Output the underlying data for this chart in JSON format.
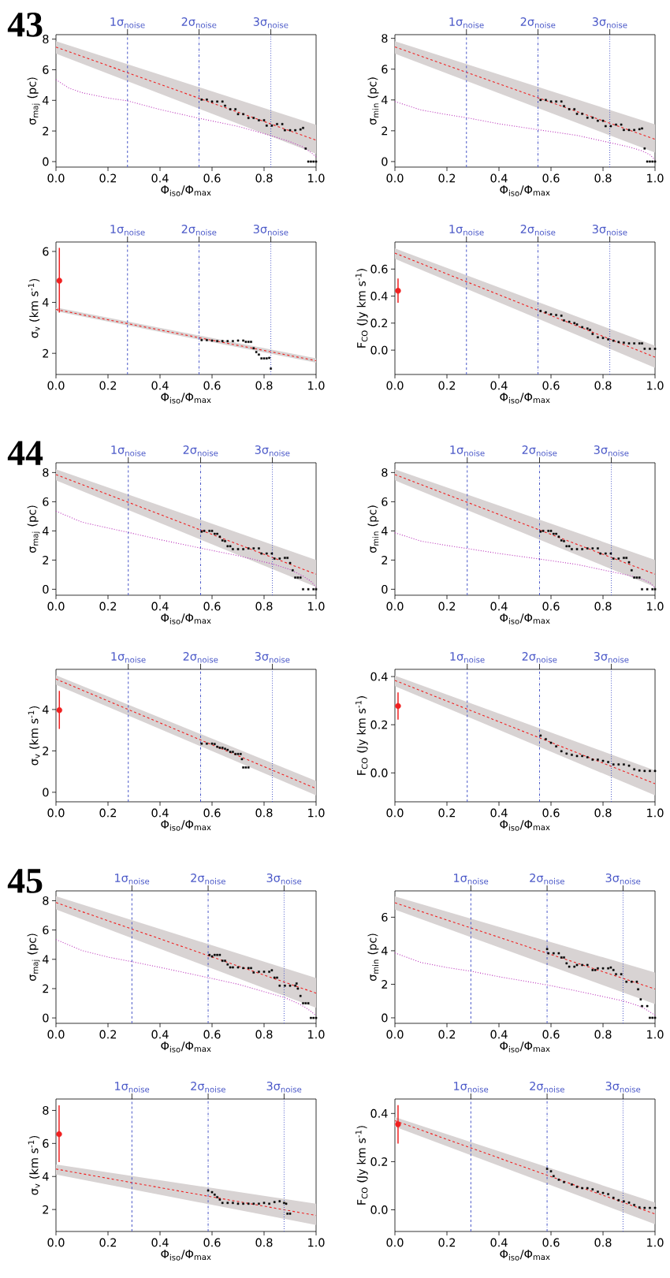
{
  "chart_data": [
    {
      "type": "scatter",
      "title": "43",
      "xlabel": "Φ$_{iso}$/Φ$_{max}$",
      "ylabel": "σ$_{maj}$ (pc)",
      "xlim": [
        0,
        1
      ],
      "ylim": [
        -0.36,
        8.29
      ],
      "xticks": [
        {
          "value": 0,
          "label": "0.0"
        },
        {
          "value": 0.2,
          "label": "0.2"
        },
        {
          "value": 0.4,
          "label": "0.4"
        },
        {
          "value": 0.6,
          "label": "0.6"
        },
        {
          "value": 0.8,
          "label": "0.8"
        },
        {
          "value": 1,
          "label": "1.0"
        }
      ],
      "yticks": [
        0,
        2,
        4,
        6,
        8
      ],
      "ref_lines": [
        {
          "axis": "x",
          "value": 0.275,
          "label": "1σ$_{noise}$",
          "color": "#4a58c8",
          "line_style": "dashed"
        },
        {
          "axis": "x",
          "value": 0.55,
          "label": "2σ$_{noise}$",
          "color": "#4a58c8",
          "line_style": "dashdot"
        },
        {
          "axis": "x",
          "value": 0.826,
          "label": "3σ$_{noise}$",
          "color": "#4a58c8",
          "line_style": "dotted"
        }
      ],
      "series": [
        {
          "type": "line",
          "color": "#f02020",
          "line_style": "dashed",
          "x": [
            0,
            1
          ],
          "values": [
            7.48,
            1.4
          ],
          "lower": [
            7.05,
            0.51
          ],
          "upper": [
            7.86,
            2.4
          ]
        },
        {
          "type": "line",
          "color": "#bf3fbf",
          "line_style": "dotted",
          "x": [
            0,
            0.05,
            0.1,
            0.2,
            0.275,
            0.4,
            0.55,
            0.7,
            0.826,
            0.9,
            0.95,
            0.98,
            1.0
          ],
          "values": [
            5.35,
            4.8,
            4.5,
            4.15,
            3.97,
            3.4,
            2.83,
            2.3,
            1.7,
            1.3,
            0.95,
            0.6,
            0.3
          ]
        },
        {
          "type": "scatter",
          "color": "#000000",
          "marker": "square",
          "x": [
            0.56,
            0.58,
            0.6,
            0.62,
            0.64,
            0.65,
            0.67,
            0.69,
            0.7,
            0.72,
            0.74,
            0.76,
            0.78,
            0.8,
            0.81,
            0.83,
            0.85,
            0.87,
            0.88,
            0.9,
            0.92,
            0.94,
            0.95,
            0.96,
            0.97,
            0.98,
            0.99,
            1.0
          ],
          "values": [
            4.05,
            4.05,
            3.92,
            3.92,
            3.92,
            3.65,
            3.42,
            3.42,
            3.1,
            3.1,
            2.85,
            2.85,
            2.7,
            2.7,
            2.35,
            2.35,
            2.45,
            2.45,
            2.05,
            2.05,
            2.05,
            2.1,
            2.2,
            0.85,
            0,
            0,
            0,
            0
          ]
        }
      ]
    },
    {
      "type": "scatter",
      "xlabel": "Φ$_{iso}$/Φ$_{max}$",
      "ylabel": "σ$_{min}$ (pc)",
      "xlim": [
        0,
        1
      ],
      "ylim": [
        -0.36,
        8.24
      ],
      "xticks": [
        {
          "value": 0,
          "label": "0.0"
        },
        {
          "value": 0.2,
          "label": "0.2"
        },
        {
          "value": 0.4,
          "label": "0.4"
        },
        {
          "value": 0.6,
          "label": "0.6"
        },
        {
          "value": 0.8,
          "label": "0.8"
        },
        {
          "value": 1,
          "label": "1.0"
        }
      ],
      "yticks": [
        0,
        2,
        4,
        6,
        8
      ],
      "ref_lines": [
        {
          "axis": "x",
          "value": 0.275,
          "label": "1σ$_{noise}$",
          "color": "#4a58c8",
          "line_style": "dashed"
        },
        {
          "axis": "x",
          "value": 0.55,
          "label": "2σ$_{noise}$",
          "color": "#4a58c8",
          "line_style": "dashdot"
        },
        {
          "axis": "x",
          "value": 0.826,
          "label": "3σ$_{noise}$",
          "color": "#4a58c8",
          "line_style": "dotted"
        }
      ],
      "series": [
        {
          "type": "line",
          "color": "#f02020",
          "line_style": "dashed",
          "x": [
            0,
            1
          ],
          "values": [
            7.44,
            1.45
          ],
          "lower": [
            7.01,
            0.58
          ],
          "upper": [
            7.81,
            2.42
          ]
        },
        {
          "type": "line",
          "color": "#bf3fbf",
          "line_style": "dotted",
          "x": [
            0,
            0.1,
            0.2,
            0.275,
            0.4,
            0.55,
            0.7,
            0.826,
            0.9,
            0.95,
            0.98,
            1.0
          ],
          "values": [
            3.9,
            3.35,
            3.05,
            2.85,
            2.45,
            2.07,
            1.7,
            1.23,
            0.95,
            0.7,
            0.45,
            0.1
          ]
        },
        {
          "type": "scatter",
          "color": "#000000",
          "marker": "square",
          "x": [
            0.56,
            0.58,
            0.6,
            0.62,
            0.64,
            0.65,
            0.67,
            0.69,
            0.7,
            0.72,
            0.74,
            0.76,
            0.78,
            0.8,
            0.81,
            0.83,
            0.85,
            0.87,
            0.88,
            0.9,
            0.92,
            0.94,
            0.95,
            0.96,
            0.97,
            0.98,
            0.99,
            1.0
          ],
          "values": [
            4.0,
            4.0,
            3.9,
            3.9,
            3.9,
            3.6,
            3.4,
            3.4,
            3.1,
            3.1,
            2.85,
            2.85,
            2.65,
            2.65,
            2.3,
            2.3,
            2.4,
            2.4,
            2.05,
            2.05,
            2.05,
            2.1,
            2.15,
            0.85,
            0,
            0,
            0,
            0
          ]
        }
      ]
    },
    {
      "type": "scatter",
      "xlabel": "Φ$_{iso}$/Φ$_{max}$",
      "ylabel": "σ$_{v}$ (km s$^{-1}$)",
      "xlim": [
        0,
        1
      ],
      "ylim": [
        1.17,
        6.37
      ],
      "xticks": [
        {
          "value": 0,
          "label": "0.0"
        },
        {
          "value": 0.2,
          "label": "0.2"
        },
        {
          "value": 0.4,
          "label": "0.4"
        },
        {
          "value": 0.6,
          "label": "0.6"
        },
        {
          "value": 0.8,
          "label": "0.8"
        },
        {
          "value": 1,
          "label": "1.0"
        }
      ],
      "yticks": [
        2,
        4,
        6
      ],
      "ref_lines": [
        {
          "axis": "x",
          "value": 0.275,
          "label": "1σ$_{noise}$",
          "color": "#4a58c8",
          "line_style": "dashed"
        },
        {
          "axis": "x",
          "value": 0.55,
          "label": "2σ$_{noise}$",
          "color": "#4a58c8",
          "line_style": "dashdot"
        },
        {
          "axis": "x",
          "value": 0.826,
          "label": "3σ$_{noise}$",
          "color": "#4a58c8",
          "line_style": "dotted"
        }
      ],
      "series": [
        {
          "type": "line",
          "color": "#f02020",
          "line_style": "dashed",
          "x": [
            0,
            1
          ],
          "values": [
            3.72,
            1.71
          ],
          "lower": [
            3.65,
            1.63
          ],
          "upper": [
            3.8,
            1.8
          ]
        },
        {
          "type": "scatter",
          "color": "#000000",
          "marker": "square",
          "x": [
            0.56,
            0.58,
            0.6,
            0.62,
            0.64,
            0.66,
            0.68,
            0.7,
            0.72,
            0.73,
            0.74,
            0.75,
            0.76,
            0.77,
            0.78,
            0.79,
            0.8,
            0.81,
            0.82,
            0.826
          ],
          "values": [
            2.52,
            2.52,
            2.5,
            2.48,
            2.48,
            2.48,
            2.48,
            2.5,
            2.5,
            2.45,
            2.45,
            2.45,
            2.2,
            2.05,
            1.95,
            1.8,
            1.8,
            1.8,
            1.82,
            1.4
          ]
        },
        {
          "type": "scatter",
          "color": "#f02020",
          "marker": "circle",
          "x": [
            0.013
          ],
          "values": [
            4.85
          ],
          "errors": [
            [
              3.6,
              6.14
            ]
          ]
        }
      ]
    },
    {
      "type": "scatter",
      "xlabel": "Φ$_{iso}$/Φ$_{max}$",
      "ylabel": "F$_{CO}$ (Jy km s$^{-1}$)",
      "xlim": [
        0,
        1
      ],
      "ylim": [
        -0.18,
        0.8
      ],
      "xticks": [
        {
          "value": 0,
          "label": "0.0"
        },
        {
          "value": 0.2,
          "label": "0.2"
        },
        {
          "value": 0.4,
          "label": "0.4"
        },
        {
          "value": 0.6,
          "label": "0.6"
        },
        {
          "value": 0.8,
          "label": "0.8"
        },
        {
          "value": 1,
          "label": "1.0"
        }
      ],
      "yticks": [
        {
          "value": 0,
          "label": "0.0"
        },
        {
          "value": 0.2,
          "label": "0.2"
        },
        {
          "value": 0.4,
          "label": "0.4"
        },
        {
          "value": 0.6,
          "label": "0.6"
        }
      ],
      "ref_lines": [
        {
          "axis": "x",
          "value": 0.275,
          "label": "1σ$_{noise}$",
          "color": "#4a58c8",
          "line_style": "dashed"
        },
        {
          "axis": "x",
          "value": 0.55,
          "label": "2σ$_{noise}$",
          "color": "#4a58c8",
          "line_style": "dashdot"
        },
        {
          "axis": "x",
          "value": 0.826,
          "label": "3σ$_{noise}$",
          "color": "#4a58c8",
          "line_style": "dotted"
        }
      ],
      "series": [
        {
          "type": "line",
          "color": "#f02020",
          "line_style": "dashed",
          "x": [
            0,
            1
          ],
          "values": [
            0.718,
            -0.052
          ],
          "lower": [
            0.676,
            -0.13
          ],
          "upper": [
            0.753,
            0.033
          ]
        },
        {
          "type": "scatter",
          "color": "#000000",
          "marker": "square",
          "x": [
            0.56,
            0.58,
            0.6,
            0.62,
            0.64,
            0.65,
            0.67,
            0.69,
            0.7,
            0.72,
            0.74,
            0.75,
            0.76,
            0.78,
            0.8,
            0.82,
            0.84,
            0.86,
            0.88,
            0.9,
            0.92,
            0.94,
            0.95,
            0.96,
            0.98,
            1.0
          ],
          "values": [
            0.29,
            0.28,
            0.265,
            0.26,
            0.255,
            0.22,
            0.21,
            0.2,
            0.19,
            0.17,
            0.16,
            0.15,
            0.12,
            0.095,
            0.09,
            0.08,
            0.07,
            0.06,
            0.055,
            0.05,
            0.05,
            0.05,
            0.05,
            0.01,
            0.01,
            0.01
          ]
        },
        {
          "type": "scatter",
          "color": "#f02020",
          "marker": "circle",
          "x": [
            0.012
          ],
          "values": [
            0.439
          ],
          "errors": [
            [
              0.35,
              0.53
            ]
          ]
        }
      ]
    },
    {
      "type": "scatter",
      "title": "44",
      "xlabel": "Φ$_{iso}$/Φ$_{max}$",
      "ylabel": "σ$_{maj}$ (pc)",
      "xlim": [
        0,
        1
      ],
      "ylim": [
        -0.41,
        8.67
      ],
      "xticks": [
        {
          "value": 0,
          "label": "0.0"
        },
        {
          "value": 0.2,
          "label": "0.2"
        },
        {
          "value": 0.4,
          "label": "0.4"
        },
        {
          "value": 0.6,
          "label": "0.6"
        },
        {
          "value": 0.8,
          "label": "0.8"
        },
        {
          "value": 1,
          "label": "1.0"
        }
      ],
      "yticks": [
        0,
        2,
        4,
        6,
        8
      ],
      "ref_lines": [
        {
          "axis": "x",
          "value": 0.278,
          "label": "1σ$_{noise}$",
          "color": "#4a58c8",
          "line_style": "dashed"
        },
        {
          "axis": "x",
          "value": 0.556,
          "label": "2σ$_{noise}$",
          "color": "#4a58c8",
          "line_style": "dashdot"
        },
        {
          "axis": "x",
          "value": 0.832,
          "label": "3σ$_{noise}$",
          "color": "#4a58c8",
          "line_style": "dotted"
        }
      ],
      "series": [
        {
          "type": "line",
          "color": "#f02020",
          "line_style": "dashed",
          "x": [
            0,
            1
          ],
          "values": [
            7.86,
            1.03
          ],
          "lower": [
            7.46,
            0.16
          ],
          "upper": [
            8.22,
            2.01
          ]
        },
        {
          "type": "line",
          "color": "#bf3fbf",
          "line_style": "dotted",
          "x": [
            0,
            0.1,
            0.2,
            0.278,
            0.4,
            0.556,
            0.7,
            0.832,
            0.9,
            0.95,
            0.98,
            1.0
          ],
          "values": [
            5.35,
            4.6,
            4.2,
            3.9,
            3.4,
            2.82,
            2.3,
            1.74,
            1.35,
            0.9,
            0.55,
            0.15
          ]
        },
        {
          "type": "scatter",
          "color": "#000000",
          "marker": "square",
          "x": [
            0.56,
            0.57,
            0.59,
            0.6,
            0.61,
            0.62,
            0.63,
            0.64,
            0.65,
            0.66,
            0.67,
            0.68,
            0.7,
            0.72,
            0.74,
            0.76,
            0.78,
            0.79,
            0.81,
            0.83,
            0.84,
            0.86,
            0.88,
            0.89,
            0.9,
            0.91,
            0.92,
            0.93,
            0.94,
            0.95,
            0.97,
            0.99,
            1.0
          ],
          "values": [
            3.95,
            4.0,
            4.0,
            4.0,
            3.8,
            3.8,
            3.6,
            3.35,
            3.3,
            2.95,
            2.95,
            2.75,
            2.75,
            2.75,
            2.8,
            2.8,
            2.8,
            2.45,
            2.45,
            2.45,
            2.1,
            2.1,
            2.15,
            2.15,
            1.8,
            1.3,
            0.8,
            0.8,
            0.8,
            0,
            0,
            0,
            0
          ]
        }
      ]
    },
    {
      "type": "scatter",
      "xlabel": "Φ$_{iso}$/Φ$_{max}$",
      "ylabel": "σ$_{min}$ (pc)",
      "xlim": [
        0,
        1
      ],
      "ylim": [
        -0.41,
        8.67
      ],
      "xticks": [
        {
          "value": 0,
          "label": "0.0"
        },
        {
          "value": 0.2,
          "label": "0.2"
        },
        {
          "value": 0.4,
          "label": "0.4"
        },
        {
          "value": 0.6,
          "label": "0.6"
        },
        {
          "value": 0.8,
          "label": "0.8"
        },
        {
          "value": 1,
          "label": "1.0"
        }
      ],
      "yticks": [
        0,
        2,
        4,
        6,
        8
      ],
      "ref_lines": [
        {
          "axis": "x",
          "value": 0.278,
          "label": "1σ$_{noise}$",
          "color": "#4a58c8",
          "line_style": "dashed"
        },
        {
          "axis": "x",
          "value": 0.556,
          "label": "2σ$_{noise}$",
          "color": "#4a58c8",
          "line_style": "dashdot"
        },
        {
          "axis": "x",
          "value": 0.832,
          "label": "3σ$_{noise}$",
          "color": "#4a58c8",
          "line_style": "dotted"
        }
      ],
      "series": [
        {
          "type": "line",
          "color": "#f02020",
          "line_style": "dashed",
          "x": [
            0,
            1
          ],
          "values": [
            7.86,
            1.03
          ],
          "lower": [
            7.46,
            0.16
          ],
          "upper": [
            8.22,
            2.01
          ]
        },
        {
          "type": "line",
          "color": "#bf3fbf",
          "line_style": "dotted",
          "x": [
            0,
            0.1,
            0.2,
            0.278,
            0.4,
            0.556,
            0.7,
            0.832,
            0.9,
            0.95,
            0.98,
            1.0
          ],
          "values": [
            3.87,
            3.3,
            3.0,
            2.79,
            2.45,
            2.07,
            1.7,
            1.2,
            0.95,
            0.7,
            0.45,
            0.1
          ]
        },
        {
          "type": "scatter",
          "color": "#000000",
          "marker": "square",
          "x": [
            0.56,
            0.57,
            0.59,
            0.6,
            0.61,
            0.62,
            0.63,
            0.64,
            0.65,
            0.66,
            0.67,
            0.68,
            0.7,
            0.72,
            0.74,
            0.76,
            0.78,
            0.79,
            0.81,
            0.83,
            0.84,
            0.86,
            0.88,
            0.89,
            0.9,
            0.91,
            0.92,
            0.93,
            0.94,
            0.95,
            0.97,
            0.99,
            1.0
          ],
          "values": [
            3.95,
            4.0,
            4.0,
            4.0,
            3.8,
            3.8,
            3.6,
            3.35,
            3.3,
            2.95,
            2.95,
            2.75,
            2.75,
            2.75,
            2.8,
            2.8,
            2.8,
            2.45,
            2.45,
            2.45,
            2.1,
            2.1,
            2.15,
            2.15,
            1.85,
            1.3,
            0.8,
            0.8,
            0.8,
            0,
            0,
            0,
            0
          ]
        }
      ]
    },
    {
      "type": "scatter",
      "xlabel": "Φ$_{iso}$/Φ$_{max}$",
      "ylabel": "σ$_{v}$ (km s$^{-1}$)",
      "xlim": [
        0,
        1
      ],
      "ylim": [
        -0.46,
        5.94
      ],
      "xticks": [
        {
          "value": 0,
          "label": "0.0"
        },
        {
          "value": 0.2,
          "label": "0.2"
        },
        {
          "value": 0.4,
          "label": "0.4"
        },
        {
          "value": 0.6,
          "label": "0.6"
        },
        {
          "value": 0.8,
          "label": "0.8"
        },
        {
          "value": 1,
          "label": "1.0"
        }
      ],
      "yticks": [
        0,
        2,
        4
      ],
      "ref_lines": [
        {
          "axis": "x",
          "value": 0.278,
          "label": "1σ$_{noise}$",
          "color": "#4a58c8",
          "line_style": "dashed"
        },
        {
          "axis": "x",
          "value": 0.556,
          "label": "2σ$_{noise}$",
          "color": "#4a58c8",
          "line_style": "dashdot"
        },
        {
          "axis": "x",
          "value": 0.832,
          "label": "3σ$_{noise}$",
          "color": "#4a58c8",
          "line_style": "dotted"
        }
      ],
      "series": [
        {
          "type": "line",
          "color": "#f02020",
          "line_style": "dashed",
          "x": [
            0,
            1
          ],
          "values": [
            5.47,
            0.18
          ],
          "lower": [
            5.2,
            -0.15
          ],
          "upper": [
            5.65,
            0.55
          ]
        },
        {
          "type": "scatter",
          "color": "#000000",
          "marker": "square",
          "x": [
            0.56,
            0.58,
            0.6,
            0.61,
            0.62,
            0.63,
            0.64,
            0.65,
            0.66,
            0.67,
            0.68,
            0.69,
            0.7,
            0.71,
            0.715,
            0.72,
            0.73,
            0.74
          ],
          "values": [
            2.35,
            2.35,
            2.35,
            2.33,
            2.2,
            2.15,
            2.15,
            2.1,
            2.05,
            1.95,
            1.95,
            1.85,
            1.85,
            1.85,
            1.6,
            1.2,
            1.2,
            1.2
          ]
        },
        {
          "type": "scatter",
          "color": "#f02020",
          "marker": "circle",
          "x": [
            0.013
          ],
          "values": [
            3.97
          ],
          "errors": [
            [
              3.06,
              4.9
            ]
          ]
        }
      ]
    },
    {
      "type": "scatter",
      "xlabel": "Φ$_{iso}$/Φ$_{max}$",
      "ylabel": "F$_{CO}$ (Jy km s$^{-1}$)",
      "xlim": [
        0,
        1
      ],
      "ylim": [
        -0.12,
        0.43
      ],
      "xticks": [
        {
          "value": 0,
          "label": "0.0"
        },
        {
          "value": 0.2,
          "label": "0.2"
        },
        {
          "value": 0.4,
          "label": "0.4"
        },
        {
          "value": 0.6,
          "label": "0.6"
        },
        {
          "value": 0.8,
          "label": "0.8"
        },
        {
          "value": 1,
          "label": "1.0"
        }
      ],
      "yticks": [
        {
          "value": 0,
          "label": "0.0"
        },
        {
          "value": 0.2,
          "label": "0.2"
        },
        {
          "value": 0.4,
          "label": "0.4"
        }
      ],
      "ref_lines": [
        {
          "axis": "x",
          "value": 0.278,
          "label": "1σ$_{noise}$",
          "color": "#4a58c8",
          "line_style": "dashed"
        },
        {
          "axis": "x",
          "value": 0.556,
          "label": "2σ$_{noise}$",
          "color": "#4a58c8",
          "line_style": "dashdot"
        },
        {
          "axis": "x",
          "value": 0.832,
          "label": "3σ$_{noise}$",
          "color": "#4a58c8",
          "line_style": "dotted"
        }
      ],
      "series": [
        {
          "type": "line",
          "color": "#f02020",
          "line_style": "dashed",
          "x": [
            0,
            1
          ],
          "values": [
            0.384,
            -0.045
          ],
          "lower": [
            0.36,
            -0.093
          ],
          "upper": [
            0.404,
            0.01
          ]
        },
        {
          "type": "scatter",
          "color": "#000000",
          "marker": "square",
          "x": [
            0.56,
            0.58,
            0.6,
            0.62,
            0.64,
            0.66,
            0.68,
            0.7,
            0.72,
            0.74,
            0.76,
            0.78,
            0.8,
            0.82,
            0.84,
            0.86,
            0.88,
            0.9,
            0.92,
            0.94,
            0.96,
            0.98,
            1.0
          ],
          "values": [
            0.155,
            0.14,
            0.125,
            0.11,
            0.09,
            0.08,
            0.075,
            0.07,
            0.07,
            0.065,
            0.055,
            0.055,
            0.05,
            0.045,
            0.035,
            0.035,
            0.035,
            0.03,
            0.015,
            0.01,
            0.008,
            0.008,
            0.008
          ]
        },
        {
          "type": "scatter",
          "color": "#f02020",
          "marker": "circle",
          "x": [
            0.012
          ],
          "values": [
            0.278
          ],
          "errors": [
            [
              0.221,
              0.334
            ]
          ]
        }
      ]
    },
    {
      "type": "scatter",
      "title": "45",
      "xlabel": "Φ$_{iso}$/Φ$_{max}$",
      "ylabel": "σ$_{maj}$ (pc)",
      "xlim": [
        0,
        1
      ],
      "ylim": [
        -0.37,
        8.67
      ],
      "xticks": [
        {
          "value": 0,
          "label": "0.0"
        },
        {
          "value": 0.2,
          "label": "0.2"
        },
        {
          "value": 0.4,
          "label": "0.4"
        },
        {
          "value": 0.6,
          "label": "0.6"
        },
        {
          "value": 0.8,
          "label": "0.8"
        },
        {
          "value": 1,
          "label": "1.0"
        }
      ],
      "yticks": [
        0,
        2,
        4,
        6,
        8
      ],
      "ref_lines": [
        {
          "axis": "x",
          "value": 0.292,
          "label": "1σ$_{noise}$",
          "color": "#4a58c8",
          "line_style": "dashed"
        },
        {
          "axis": "x",
          "value": 0.585,
          "label": "2σ$_{noise}$",
          "color": "#4a58c8",
          "line_style": "dashdot"
        },
        {
          "axis": "x",
          "value": 0.877,
          "label": "3σ$_{noise}$",
          "color": "#4a58c8",
          "line_style": "dotted"
        }
      ],
      "series": [
        {
          "type": "line",
          "color": "#f02020",
          "line_style": "dashed",
          "x": [
            0,
            1
          ],
          "values": [
            7.87,
            1.69
          ],
          "lower": [
            7.4,
            0.69
          ],
          "upper": [
            8.3,
            2.72
          ]
        },
        {
          "type": "line",
          "color": "#bf3fbf",
          "line_style": "dotted",
          "x": [
            0,
            0.1,
            0.2,
            0.292,
            0.4,
            0.585,
            0.7,
            0.877,
            0.93,
            0.96,
            0.98,
            1.0
          ],
          "values": [
            5.35,
            4.6,
            4.15,
            3.84,
            3.45,
            2.75,
            2.3,
            1.4,
            1.0,
            0.7,
            0.45,
            0.15
          ]
        },
        {
          "type": "scatter",
          "color": "#000000",
          "marker": "square",
          "x": [
            0.59,
            0.6,
            0.61,
            0.62,
            0.63,
            0.64,
            0.65,
            0.66,
            0.67,
            0.68,
            0.7,
            0.72,
            0.74,
            0.75,
            0.76,
            0.78,
            0.8,
            0.82,
            0.83,
            0.84,
            0.85,
            0.86,
            0.88,
            0.9,
            0.92,
            0.925,
            0.93,
            0.94,
            0.95,
            0.96,
            0.97,
            0.98,
            0.99,
            1.0
          ],
          "values": [
            4.3,
            4.2,
            4.3,
            4.3,
            4.3,
            3.9,
            3.9,
            3.65,
            3.45,
            3.45,
            3.45,
            3.4,
            3.4,
            3.4,
            3.1,
            3.15,
            3.15,
            3.15,
            3.25,
            2.75,
            2.75,
            2.2,
            2.2,
            2.2,
            2.2,
            2.35,
            2.0,
            1.5,
            1.0,
            1.0,
            1.0,
            0,
            0,
            0
          ]
        }
      ]
    },
    {
      "type": "scatter",
      "xlabel": "Φ$_{iso}$/Φ$_{max}$",
      "ylabel": "σ$_{min}$ (pc)",
      "xlim": [
        0,
        1
      ],
      "ylim": [
        -0.33,
        7.57
      ],
      "xticks": [
        {
          "value": 0,
          "label": "0.0"
        },
        {
          "value": 0.2,
          "label": "0.2"
        },
        {
          "value": 0.4,
          "label": "0.4"
        },
        {
          "value": 0.6,
          "label": "0.6"
        },
        {
          "value": 0.8,
          "label": "0.8"
        },
        {
          "value": 1,
          "label": "1.0"
        }
      ],
      "yticks": [
        0,
        2,
        4,
        6
      ],
      "ref_lines": [
        {
          "axis": "x",
          "value": 0.292,
          "label": "1σ$_{noise}$",
          "color": "#4a58c8",
          "line_style": "dashed"
        },
        {
          "axis": "x",
          "value": 0.585,
          "label": "2σ$_{noise}$",
          "color": "#4a58c8",
          "line_style": "dashdot"
        },
        {
          "axis": "x",
          "value": 0.877,
          "label": "3σ$_{noise}$",
          "color": "#4a58c8",
          "line_style": "dotted"
        }
      ],
      "series": [
        {
          "type": "line",
          "color": "#f02020",
          "line_style": "dashed",
          "x": [
            0,
            1
          ],
          "values": [
            6.86,
            1.72
          ],
          "lower": [
            6.45,
            0.82
          ],
          "upper": [
            7.24,
            2.7
          ]
        },
        {
          "type": "line",
          "color": "#bf3fbf",
          "line_style": "dotted",
          "x": [
            0,
            0.1,
            0.2,
            0.292,
            0.4,
            0.585,
            0.7,
            0.877,
            0.93,
            0.96,
            0.98,
            1.0
          ],
          "values": [
            3.87,
            3.3,
            3.0,
            2.78,
            2.45,
            1.96,
            1.6,
            1.01,
            0.75,
            0.55,
            0.35,
            0.15
          ]
        },
        {
          "type": "scatter",
          "color": "#000000",
          "marker": "square",
          "x": [
            0.585,
            0.59,
            0.61,
            0.63,
            0.64,
            0.65,
            0.66,
            0.67,
            0.69,
            0.7,
            0.72,
            0.74,
            0.76,
            0.77,
            0.78,
            0.8,
            0.82,
            0.83,
            0.84,
            0.85,
            0.87,
            0.89,
            0.91,
            0.93,
            0.935,
            0.945,
            0.95,
            0.97,
            0.98,
            0.99,
            1.0
          ],
          "values": [
            4.1,
            3.85,
            3.85,
            3.85,
            3.6,
            3.6,
            3.25,
            3.05,
            3.05,
            3.15,
            3.15,
            3.15,
            2.85,
            2.85,
            2.95,
            2.95,
            2.95,
            3.0,
            2.85,
            2.6,
            2.6,
            2.15,
            2.15,
            2.15,
            1.7,
            1.1,
            0.7,
            0.7,
            0,
            0,
            0
          ]
        }
      ]
    },
    {
      "type": "scatter",
      "xlabel": "Φ$_{iso}$/Φ$_{max}$",
      "ylabel": "σ$_{v}$ (km s$^{-1}$)",
      "xlim": [
        0,
        1
      ],
      "ylim": [
        0.67,
        8.69
      ],
      "xticks": [
        {
          "value": 0,
          "label": "0.0"
        },
        {
          "value": 0.2,
          "label": "0.2"
        },
        {
          "value": 0.4,
          "label": "0.4"
        },
        {
          "value": 0.6,
          "label": "0.6"
        },
        {
          "value": 0.8,
          "label": "0.8"
        },
        {
          "value": 1,
          "label": "1.0"
        }
      ],
      "yticks": [
        2,
        4,
        6,
        8
      ],
      "ref_lines": [
        {
          "axis": "x",
          "value": 0.292,
          "label": "1σ$_{noise}$",
          "color": "#4a58c8",
          "line_style": "dashed"
        },
        {
          "axis": "x",
          "value": 0.585,
          "label": "2σ$_{noise}$",
          "color": "#4a58c8",
          "line_style": "dashdot"
        },
        {
          "axis": "x",
          "value": 0.877,
          "label": "3σ$_{noise}$",
          "color": "#4a58c8",
          "line_style": "dotted"
        }
      ],
      "series": [
        {
          "type": "line",
          "color": "#f02020",
          "line_style": "dashed",
          "x": [
            0,
            1
          ],
          "values": [
            4.45,
            1.64
          ],
          "lower": [
            4.12,
            1.06
          ],
          "upper": [
            4.73,
            2.35
          ]
        },
        {
          "type": "scatter",
          "color": "#000000",
          "marker": "square",
          "x": [
            0.585,
            0.6,
            0.61,
            0.62,
            0.63,
            0.64,
            0.66,
            0.68,
            0.7,
            0.72,
            0.74,
            0.76,
            0.78,
            0.8,
            0.82,
            0.84,
            0.86,
            0.877,
            0.885,
            0.89,
            0.9
          ],
          "values": [
            3.15,
            3.05,
            2.9,
            2.75,
            2.6,
            2.4,
            2.4,
            2.4,
            2.35,
            2.35,
            2.35,
            2.35,
            2.35,
            2.4,
            2.35,
            2.45,
            2.5,
            2.4,
            2.35,
            1.75,
            1.75
          ]
        },
        {
          "type": "scatter",
          "color": "#f02020",
          "marker": "circle",
          "x": [
            0.012
          ],
          "values": [
            6.56
          ],
          "errors": [
            [
              4.87,
              8.31
            ]
          ]
        }
      ]
    },
    {
      "type": "scatter",
      "xlabel": "Φ$_{iso}$/Φ$_{max}$",
      "ylabel": "F$_{CO}$ (Jy km s$^{-1}$)",
      "xlim": [
        0,
        1
      ],
      "ylim": [
        -0.09,
        0.46
      ],
      "xticks": [
        {
          "value": 0,
          "label": "0.0"
        },
        {
          "value": 0.2,
          "label": "0.2"
        },
        {
          "value": 0.4,
          "label": "0.4"
        },
        {
          "value": 0.6,
          "label": "0.6"
        },
        {
          "value": 0.8,
          "label": "0.8"
        },
        {
          "value": 1,
          "label": "1.0"
        }
      ],
      "yticks": [
        {
          "value": 0,
          "label": "0.0"
        },
        {
          "value": 0.2,
          "label": "0.2"
        },
        {
          "value": 0.4,
          "label": "0.4"
        }
      ],
      "ref_lines": [
        {
          "axis": "x",
          "value": 0.292,
          "label": "1σ$_{noise}$",
          "color": "#4a58c8",
          "line_style": "dashed"
        },
        {
          "axis": "x",
          "value": 0.585,
          "label": "2σ$_{noise}$",
          "color": "#4a58c8",
          "line_style": "dashdot"
        },
        {
          "axis": "x",
          "value": 0.877,
          "label": "3σ$_{noise}$",
          "color": "#4a58c8",
          "line_style": "dotted"
        }
      ],
      "series": [
        {
          "type": "line",
          "color": "#f02020",
          "line_style": "dashed",
          "x": [
            0,
            1
          ],
          "values": [
            0.37,
            -0.017
          ],
          "lower": [
            0.345,
            -0.06
          ],
          "upper": [
            0.385,
            0.03
          ]
        },
        {
          "type": "scatter",
          "color": "#000000",
          "marker": "square",
          "x": [
            0.585,
            0.6,
            0.61,
            0.63,
            0.65,
            0.68,
            0.7,
            0.72,
            0.74,
            0.76,
            0.78,
            0.8,
            0.82,
            0.84,
            0.86,
            0.88,
            0.9,
            0.92,
            0.94,
            0.96,
            0.98,
            1.0
          ],
          "values": [
            0.17,
            0.16,
            0.14,
            0.125,
            0.115,
            0.105,
            0.095,
            0.09,
            0.09,
            0.085,
            0.075,
            0.07,
            0.065,
            0.05,
            0.04,
            0.035,
            0.03,
            0.02,
            0.01,
            0.008,
            0.008,
            0.008
          ]
        },
        {
          "type": "scatter",
          "color": "#f02020",
          "marker": "circle",
          "x": [
            0.012
          ],
          "values": [
            0.355
          ],
          "errors": [
            [
              0.275,
              0.435
            ]
          ]
        }
      ]
    }
  ]
}
